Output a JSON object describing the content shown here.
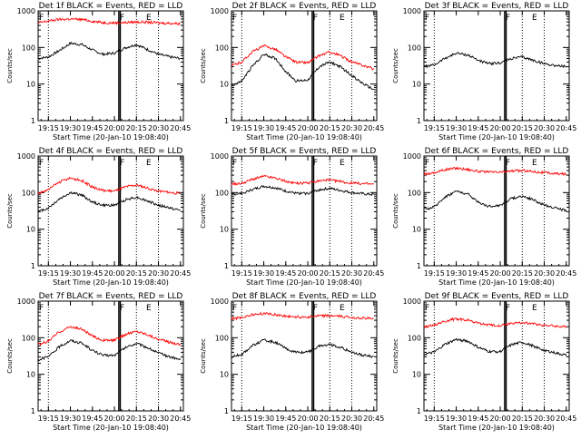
{
  "chart_data": [
    {
      "type": "line",
      "title": "Det 1f BLACK = Events, RED = LLD",
      "ylabel": "Counts/sec",
      "xlabel": "Start Time (20-Jan-10 19:08:40)",
      "xticks": [
        "19:15",
        "19:30",
        "19:45",
        "20:00",
        "20:15",
        "20:30",
        "20:45"
      ],
      "yticks": [
        "1",
        "10",
        "100",
        "1000"
      ],
      "ylim": [
        1,
        1000
      ],
      "yscale": "log",
      "x": [
        "19:08",
        "19:15",
        "19:22",
        "19:30",
        "19:38",
        "19:45",
        "19:52",
        "20:00",
        "20:08",
        "20:15",
        "20:22",
        "20:30",
        "20:38",
        "20:45"
      ],
      "series": [
        {
          "color": "#000000",
          "values": [
            50,
            55,
            80,
            130,
            120,
            85,
            65,
            70,
            100,
            120,
            90,
            65,
            55,
            50
          ]
        },
        {
          "color": "#ff0000",
          "values": [
            470,
            530,
            580,
            600,
            580,
            520,
            480,
            470,
            480,
            500,
            490,
            470,
            460,
            450
          ]
        }
      ]
    },
    {
      "type": "line",
      "title": "Det 2f BLACK = Events, RED = LLD",
      "ylabel": "Counts/sec",
      "xlabel": "Start Time (20-Jan-10 19:08:40)",
      "xticks": [
        "19:15",
        "19:30",
        "19:45",
        "20:00",
        "20:15",
        "20:30",
        "20:45"
      ],
      "yticks": [
        "1",
        "10",
        "100",
        "1000"
      ],
      "ylim": [
        1,
        1000
      ],
      "yscale": "log",
      "x": [
        "19:08",
        "19:15",
        "19:22",
        "19:30",
        "19:38",
        "19:45",
        "19:52",
        "20:00",
        "20:08",
        "20:15",
        "20:22",
        "20:30",
        "20:38",
        "20:45"
      ],
      "series": [
        {
          "color": "#000000",
          "values": [
            9,
            12,
            30,
            65,
            50,
            22,
            12,
            13,
            30,
            40,
            30,
            17,
            10,
            7
          ]
        },
        {
          "color": "#ff0000",
          "values": [
            32,
            40,
            75,
            110,
            90,
            55,
            40,
            38,
            60,
            75,
            60,
            40,
            32,
            26
          ]
        }
      ]
    },
    {
      "type": "line",
      "title": "Det 3f BLACK = Events, RED = LLD",
      "ylabel": "Counts/sec",
      "xlabel": "Start Time (20-Jan-10 19:08:40)",
      "xticks": [
        "19:15",
        "19:30",
        "19:45",
        "20:00",
        "20:15",
        "20:30",
        "20:45"
      ],
      "yticks": [
        "1",
        "10",
        "100",
        "1000"
      ],
      "ylim": [
        1,
        1000
      ],
      "yscale": "log",
      "x": [
        "19:08",
        "19:15",
        "19:22",
        "19:30",
        "19:38",
        "19:45",
        "19:52",
        "20:00",
        "20:08",
        "20:15",
        "20:22",
        "20:30",
        "20:38",
        "20:45"
      ],
      "series": [
        {
          "color": "#000000",
          "values": [
            30,
            33,
            50,
            70,
            62,
            45,
            36,
            38,
            50,
            55,
            45,
            36,
            32,
            30
          ]
        }
      ]
    },
    {
      "type": "line",
      "title": "Det 4f BLACK = Events, RED = LLD",
      "ylabel": "Counts/sec",
      "xlabel": "Start Time (20-Jan-10 19:08:40)",
      "xticks": [
        "19:15",
        "19:30",
        "19:45",
        "20:00",
        "20:15",
        "20:30",
        "20:45"
      ],
      "yticks": [
        "1",
        "10",
        "100",
        "1000"
      ],
      "ylim": [
        1,
        1000
      ],
      "yscale": "log",
      "x": [
        "19:08",
        "19:15",
        "19:22",
        "19:30",
        "19:38",
        "19:45",
        "19:52",
        "20:00",
        "20:08",
        "20:15",
        "20:22",
        "20:30",
        "20:38",
        "20:45"
      ],
      "series": [
        {
          "color": "#000000",
          "values": [
            30,
            38,
            65,
            100,
            85,
            55,
            45,
            45,
            65,
            75,
            60,
            45,
            38,
            32
          ]
        },
        {
          "color": "#ff0000",
          "values": [
            95,
            120,
            190,
            250,
            210,
            140,
            115,
            110,
            145,
            160,
            135,
            110,
            100,
            95
          ]
        }
      ]
    },
    {
      "type": "line",
      "title": "Det 5f BLACK = Events, RED = LLD",
      "ylabel": "Counts/sec",
      "xlabel": "Start Time (20-Jan-10 19:08:40)",
      "xticks": [
        "19:15",
        "19:30",
        "19:45",
        "20:00",
        "20:15",
        "20:30",
        "20:45"
      ],
      "yticks": [
        "1",
        "10",
        "100",
        "1000"
      ],
      "ylim": [
        1,
        1000
      ],
      "yscale": "log",
      "x": [
        "19:08",
        "19:15",
        "19:22",
        "19:30",
        "19:38",
        "19:45",
        "19:52",
        "20:00",
        "20:08",
        "20:15",
        "20:22",
        "20:30",
        "20:38",
        "20:45"
      ],
      "series": [
        {
          "color": "#000000",
          "values": [
            90,
            95,
            120,
            150,
            135,
            110,
            95,
            95,
            120,
            130,
            115,
            100,
            92,
            88
          ]
        },
        {
          "color": "#ff0000",
          "values": [
            170,
            180,
            230,
            280,
            250,
            200,
            180,
            180,
            210,
            220,
            200,
            180,
            175,
            170
          ]
        }
      ]
    },
    {
      "type": "line",
      "title": "Det 6f BLACK = Events, RED = LLD",
      "ylabel": "Counts/sec",
      "xlabel": "Start Time (20-Jan-10 19:08:40)",
      "xticks": [
        "19:15",
        "19:30",
        "19:45",
        "20:00",
        "20:15",
        "20:30",
        "20:45"
      ],
      "yticks": [
        "1",
        "10",
        "100",
        "1000"
      ],
      "ylim": [
        1,
        1000
      ],
      "yscale": "log",
      "x": [
        "19:08",
        "19:15",
        "19:22",
        "19:30",
        "19:38",
        "19:45",
        "19:52",
        "20:00",
        "20:08",
        "20:15",
        "20:22",
        "20:30",
        "20:38",
        "20:45"
      ],
      "series": [
        {
          "color": "#000000",
          "values": [
            35,
            40,
            75,
            110,
            90,
            55,
            42,
            45,
            70,
            80,
            65,
            45,
            38,
            32
          ]
        },
        {
          "color": "#ff0000",
          "values": [
            320,
            350,
            420,
            470,
            430,
            380,
            360,
            360,
            390,
            400,
            380,
            350,
            330,
            320
          ]
        }
      ]
    },
    {
      "type": "line",
      "title": "Det 7f BLACK = Events, RED = LLD",
      "ylabel": "Counts/sec",
      "xlabel": "Start Time (20-Jan-10 19:08:40)",
      "xticks": [
        "19:15",
        "19:30",
        "19:45",
        "20:00",
        "20:15",
        "20:30",
        "20:45"
      ],
      "yticks": [
        "1",
        "10",
        "100",
        "1000"
      ],
      "ylim": [
        1,
        1000
      ],
      "yscale": "log",
      "x": [
        "19:08",
        "19:15",
        "19:22",
        "19:30",
        "19:38",
        "19:45",
        "19:52",
        "20:00",
        "20:08",
        "20:15",
        "20:22",
        "20:30",
        "20:38",
        "20:45"
      ],
      "series": [
        {
          "color": "#000000",
          "values": [
            25,
            30,
            55,
            85,
            70,
            45,
            33,
            33,
            55,
            70,
            55,
            38,
            30,
            25
          ]
        },
        {
          "color": "#ff0000",
          "values": [
            65,
            80,
            140,
            200,
            170,
            110,
            85,
            85,
            125,
            150,
            125,
            90,
            75,
            65
          ]
        }
      ]
    },
    {
      "type": "line",
      "title": "Det 8f BLACK = Events, RED = LLD",
      "ylabel": "Counts/sec",
      "xlabel": "Start Time (20-Jan-10 19:08:40)",
      "xticks": [
        "19:15",
        "19:30",
        "19:45",
        "20:00",
        "20:15",
        "20:30",
        "20:45"
      ],
      "yticks": [
        "1",
        "10",
        "100",
        "1000"
      ],
      "ylim": [
        1,
        1000
      ],
      "yscale": "log",
      "x": [
        "19:08",
        "19:15",
        "19:22",
        "19:30",
        "19:38",
        "19:45",
        "19:52",
        "20:00",
        "20:08",
        "20:15",
        "20:22",
        "20:30",
        "20:38",
        "20:45"
      ],
      "series": [
        {
          "color": "#000000",
          "values": [
            30,
            35,
            60,
            85,
            75,
            50,
            40,
            40,
            60,
            65,
            55,
            40,
            33,
            30
          ]
        },
        {
          "color": "#ff0000",
          "values": [
            330,
            360,
            420,
            460,
            430,
            390,
            370,
            370,
            390,
            400,
            380,
            360,
            340,
            330
          ]
        }
      ]
    },
    {
      "type": "line",
      "title": "Det 9f BLACK = Events, RED = LLD",
      "ylabel": "Counts/sec",
      "xlabel": "Start Time (20-Jan-10 19:08:40)",
      "xticks": [
        "19:15",
        "19:30",
        "19:45",
        "20:00",
        "20:15",
        "20:30",
        "20:45"
      ],
      "yticks": [
        "1",
        "10",
        "100",
        "1000"
      ],
      "ylim": [
        1,
        1000
      ],
      "yscale": "log",
      "x": [
        "19:08",
        "19:15",
        "19:22",
        "19:30",
        "19:38",
        "19:45",
        "19:52",
        "20:00",
        "20:08",
        "20:15",
        "20:22",
        "20:30",
        "20:38",
        "20:45"
      ],
      "series": [
        {
          "color": "#000000",
          "values": [
            35,
            40,
            65,
            90,
            80,
            55,
            42,
            42,
            65,
            75,
            60,
            45,
            38,
            33
          ]
        },
        {
          "color": "#ff0000",
          "values": [
            200,
            220,
            280,
            330,
            300,
            250,
            220,
            215,
            245,
            260,
            240,
            220,
            205,
            195
          ]
        }
      ]
    }
  ],
  "markers": {
    "flags": [
      "F",
      "F",
      "E"
    ],
    "flag_times": [
      "19:08",
      "20:03",
      "20:21"
    ],
    "dotted_times": [
      "19:15",
      "20:15",
      "20:30"
    ],
    "band_times": [
      "20:03",
      "20:04"
    ]
  }
}
